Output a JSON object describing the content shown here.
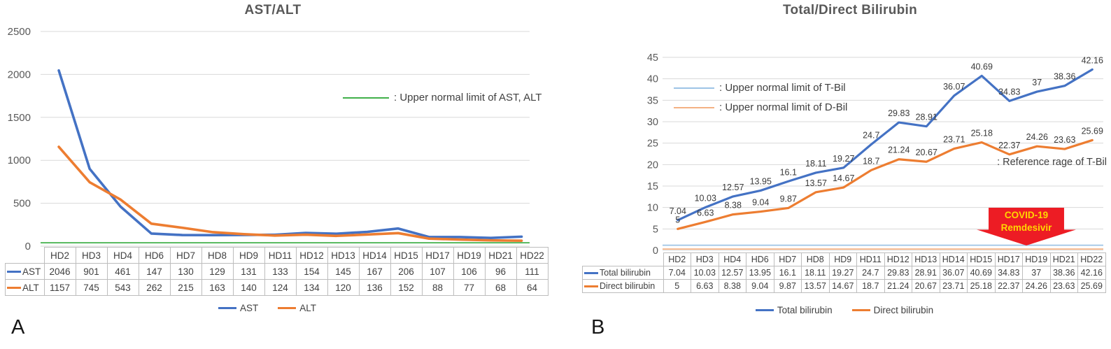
{
  "figure": {
    "panel_a_label": "A",
    "panel_b_label": "B"
  },
  "chart_data": [
    {
      "type": "line",
      "panel": "A",
      "title": "AST/ALT",
      "categories": [
        "HD2",
        "HD3",
        "HD4",
        "HD6",
        "HD7",
        "HD8",
        "HD9",
        "HD11",
        "HD12",
        "HD13",
        "HD14",
        "HD15",
        "HD17",
        "HD19",
        "HD21",
        "HD22"
      ],
      "series": [
        {
          "name": "AST",
          "color": "#4472c4",
          "values": [
            2046,
            901,
            461,
            147,
            130,
            129,
            131,
            133,
            154,
            145,
            167,
            206,
            107,
            106,
            96,
            111
          ]
        },
        {
          "name": "ALT",
          "color": "#ed7d31",
          "values": [
            1157,
            745,
            543,
            262,
            215,
            163,
            140,
            124,
            134,
            120,
            136,
            152,
            88,
            77,
            68,
            64
          ]
        }
      ],
      "reference_lines": [
        {
          "label": ": Upper normal limit of AST, ALT",
          "color": "#41b04a",
          "value": 40
        }
      ],
      "ylim": [
        0,
        2500
      ],
      "ytick_step": 500,
      "grid": true,
      "legend_position": "bottom",
      "show_point_labels": false,
      "data_table": true
    },
    {
      "type": "line",
      "panel": "B",
      "title": "Total/Direct Bilirubin",
      "categories": [
        "HD2",
        "HD3",
        "HD4",
        "HD6",
        "HD7",
        "HD8",
        "HD9",
        "HD11",
        "HD12",
        "HD13",
        "HD14",
        "HD15",
        "HD17",
        "HD19",
        "HD21",
        "HD22"
      ],
      "series": [
        {
          "name": "Total bilirubin",
          "color": "#4472c4",
          "values": [
            7.04,
            10.03,
            12.57,
            13.95,
            16.1,
            18.11,
            19.27,
            24.7,
            29.83,
            28.91,
            36.07,
            40.69,
            34.83,
            37,
            38.36,
            42.16
          ]
        },
        {
          "name": "Direct bilirubin",
          "color": "#ed7d31",
          "values": [
            5,
            6.63,
            8.38,
            9.04,
            9.87,
            13.57,
            14.67,
            18.7,
            21.24,
            20.67,
            23.71,
            25.18,
            22.37,
            24.26,
            23.63,
            25.69
          ]
        }
      ],
      "reference_lines": [
        {
          "label": ": Upper normal limit of T-Bil",
          "color": "#9dc3e6",
          "value": 1.2
        },
        {
          "label": ": Upper normal limit of D-Bil",
          "color": "#f4b183",
          "value": 0.3
        }
      ],
      "annotation_reference_range": ": Reference rage of T-Bil",
      "covid_annotation": {
        "line1": "COVID-19",
        "line2": "Remdesivir",
        "arrow_color": "#ed1c24",
        "text_color": "#ffd700"
      },
      "ylim": [
        0,
        45
      ],
      "ytick_step": 5,
      "grid": true,
      "legend_position": "bottom",
      "show_point_labels": true,
      "data_table": true
    }
  ]
}
